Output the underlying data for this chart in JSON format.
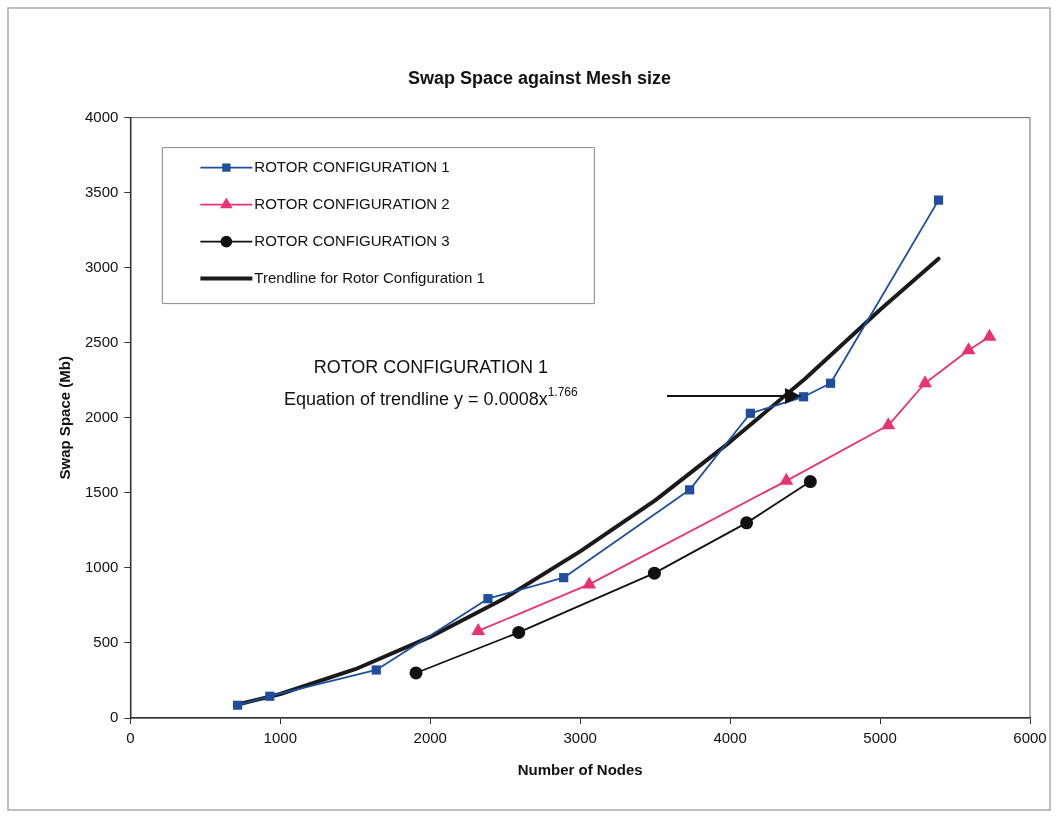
{
  "chart_data": {
    "type": "line",
    "title": "Swap Space against Mesh size",
    "xlabel": "Number of Nodes",
    "ylabel": "Swap Space (Mb)",
    "xlim": [
      0,
      6000
    ],
    "xticks": [
      0,
      1000,
      2000,
      3000,
      4000,
      5000,
      6000
    ],
    "ylim": [
      0,
      4000
    ],
    "yticks": [
      0,
      500,
      1000,
      1500,
      2000,
      2500,
      3000,
      3500,
      4000
    ],
    "grid": false,
    "legend": "top left",
    "line_style": "solid",
    "series": [
      {
        "name": "ROTOR CONFIGURATION 1",
        "color": "#1f4e9c",
        "marker": "square",
        "x": [
          715,
          930,
          1640,
          2385,
          2890,
          3730,
          4135,
          4490,
          4670,
          5390
        ],
        "values": [
          85,
          145,
          320,
          795,
          935,
          1520,
          2030,
          2140,
          2230,
          3450
        ]
      },
      {
        "name": "ROTOR CONFIGURATION 2",
        "color": "#e8336e",
        "marker": "triangle",
        "x": [
          2320,
          3060,
          4375,
          5055,
          5300,
          5590,
          5730
        ],
        "values": [
          580,
          890,
          1580,
          1950,
          2230,
          2450,
          2540
        ]
      },
      {
        "name": "ROTOR CONFIGURATION 3",
        "color": "#111111",
        "marker": "circle",
        "x": [
          1905,
          2590,
          3495,
          4110,
          4535
        ],
        "values": [
          300,
          570,
          965,
          1300,
          1575
        ]
      },
      {
        "name": "Trendline for Rotor Configuration 1",
        "color": "#1a1a1a",
        "marker": "none",
        "x": [
          715,
          1000,
          1500,
          2000,
          2500,
          3000,
          3500,
          4000,
          4500,
          5000,
          5390
        ],
        "values": [
          90,
          160,
          325,
          540,
          800,
          1110,
          1450,
          1840,
          2260,
          2720,
          3060
        ]
      }
    ],
    "annotations": [
      "ROTOR CONFIGURATION 1",
      "Equation of trendline y = 0.0008x$^{1.766}$"
    ]
  }
}
